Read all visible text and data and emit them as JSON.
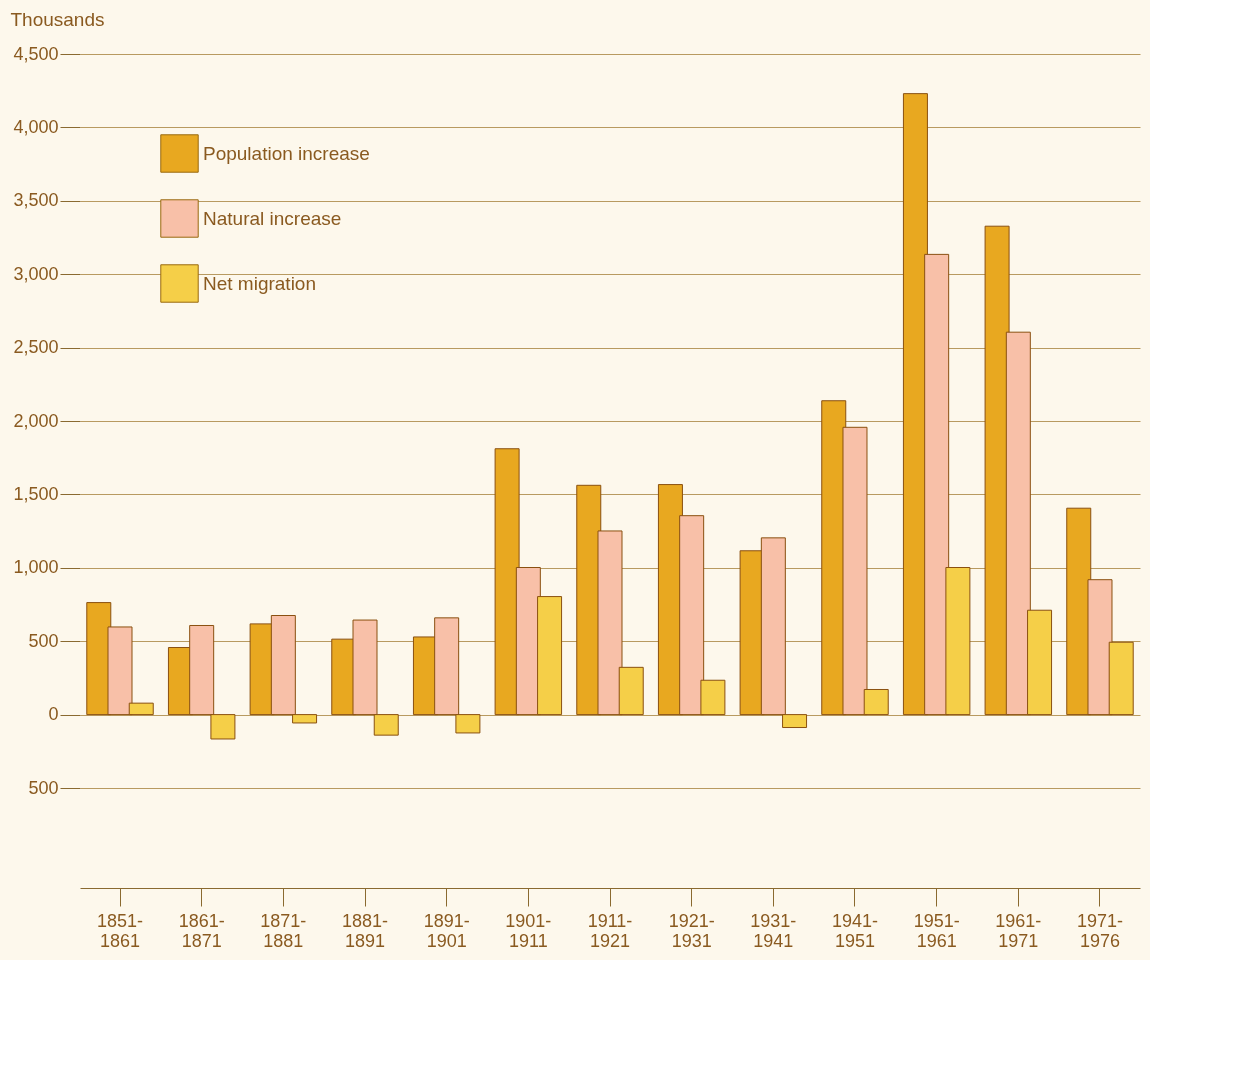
{
  "chart_data": {
    "type": "bar",
    "ylabel": "Thousands",
    "categories": [
      "1851-1861",
      "1861-1871",
      "1871-1881",
      "1881-1891",
      "1891-1901",
      "1901-1911",
      "1911-1921",
      "1921-1931",
      "1931-1941",
      "1941-1951",
      "1951-1961",
      "1961-1971",
      "1971-1976"
    ],
    "series": [
      {
        "name": "Population increase",
        "color": "#e8a820",
        "values": [
          763,
          457,
          618,
          514,
          529,
          1811,
          1562,
          1567,
          1116,
          2138,
          4230,
          3327,
          1406
        ]
      },
      {
        "name": "Natural increase",
        "color": "#f8c0a8",
        "values": [
          597,
          607,
          675,
          644,
          659,
          1002,
          1251,
          1355,
          1204,
          1957,
          3135,
          2605,
          919
        ]
      },
      {
        "name": "Net migration",
        "color": "#f5cf48",
        "values": [
          78,
          -166,
          -57,
          -140,
          -125,
          804,
          322,
          234,
          -88,
          171,
          1002,
          711,
          493
        ]
      }
    ],
    "ylim": [
      -500,
      4500
    ],
    "yticks": [
      {
        "value": -500,
        "label": "500"
      },
      0,
      {
        "value": 500,
        "label": "500"
      },
      {
        "value": 1000,
        "label": "1,000"
      },
      {
        "value": 1500,
        "label": "1,500"
      },
      {
        "value": 2000,
        "label": "2,000"
      },
      {
        "value": 2500,
        "label": "2,500"
      },
      {
        "value": 3000,
        "label": "3,000"
      },
      {
        "value": 3500,
        "label": "3,500"
      },
      {
        "value": 4000,
        "label": "4,000"
      },
      {
        "value": 4500,
        "label": "4,500"
      }
    ],
    "grid": "y",
    "legend": "top left"
  }
}
